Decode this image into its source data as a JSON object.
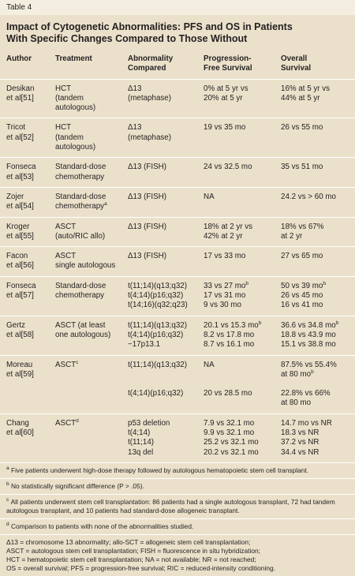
{
  "label": "Table 4",
  "title": [
    "Impact of Cytogenetic Abnormalities: PFS and OS in Patients",
    "With Specific Changes Compared to Those Without"
  ],
  "table": {
    "header": [
      [
        "Author"
      ],
      [
        "Treatment"
      ],
      [
        "Abnormality",
        "Compared"
      ],
      [
        "Progression-",
        "Free Survival"
      ],
      [
        "Overall",
        "Survival"
      ]
    ],
    "rows": [
      [
        [
          [
            "Desikan",
            "et al[51]"
          ]
        ],
        [
          [
            "HCT",
            "(tandem",
            "autologous)"
          ]
        ],
        [
          [
            "Δ13",
            "(metaphase)"
          ]
        ],
        [
          [
            "0% at 5 yr vs",
            "20% at 5 yr"
          ]
        ],
        [
          [
            "16% at 5 yr vs",
            "44% at 5 yr"
          ]
        ]
      ],
      [
        [
          [
            "Tricot",
            "et al[52]"
          ]
        ],
        [
          [
            "HCT",
            "(tandem",
            "autologous)"
          ]
        ],
        [
          [
            "Δ13",
            "(metaphase)"
          ]
        ],
        [
          [
            "19 vs 35 mo"
          ]
        ],
        [
          [
            "26 vs 55 mo"
          ]
        ]
      ],
      [
        [
          [
            "Fonseca",
            "et al[53]"
          ]
        ],
        [
          [
            "Standard-dose",
            "chemotherapy"
          ]
        ],
        [
          [
            "Δ13 (FISH)"
          ]
        ],
        [
          [
            "24 vs 32.5 mo"
          ]
        ],
        [
          [
            "35 vs 51 mo"
          ]
        ]
      ],
      [
        [
          [
            "Zojer",
            "et al[54]"
          ]
        ],
        [
          [
            "Standard-dose",
            {
              "text": "chemotherapy",
              "sup": "a"
            }
          ]
        ],
        [
          [
            "Δ13 (FISH)"
          ]
        ],
        [
          [
            "NA"
          ]
        ],
        [
          [
            "24.2 vs > 60 mo"
          ]
        ]
      ],
      [
        [
          [
            "Kroger",
            "et al[55]"
          ]
        ],
        [
          [
            "ASCT",
            "(auto/RIC allo)"
          ]
        ],
        [
          [
            "Δ13 (FISH)"
          ]
        ],
        [
          [
            "18% at 2 yr vs",
            "42% at 2 yr"
          ]
        ],
        [
          [
            "18% vs 67%",
            "at 2 yr"
          ]
        ]
      ],
      [
        [
          [
            "Facon",
            "et al[56]"
          ]
        ],
        [
          [
            "ASCT",
            "single autologous"
          ]
        ],
        [
          [
            "Δ13 (FISH)"
          ]
        ],
        [
          [
            "17 vs 33 mo"
          ]
        ],
        [
          [
            "27 vs 65 mo"
          ]
        ]
      ],
      [
        [
          [
            "Fonseca",
            "et al[57]"
          ]
        ],
        [
          [
            "Standard-dose",
            "chemotherapy"
          ]
        ],
        [
          [
            "t(11;14)(q13;q32)",
            "t(4;14)(p16;q32)",
            "t(14;16)(q32;q23)"
          ]
        ],
        [
          [
            {
              "text": "33 vs 27 mo",
              "sup": "b"
            },
            "17 vs 31 mo",
            "9 vs 30 mo"
          ]
        ],
        [
          [
            {
              "text": "50 vs 39 mo",
              "sup": "b"
            },
            "26 vs 45 mo",
            "16 vs 41 mo"
          ]
        ]
      ],
      [
        [
          [
            "Gertz",
            "et al[58]"
          ]
        ],
        [
          [
            "ASCT (at least",
            "one autologous)"
          ]
        ],
        [
          [
            "t(11;14)(q13;q32)",
            "t(4;14)(p16;q32)",
            "−17p13.1"
          ]
        ],
        [
          [
            {
              "text": "20.1 vs 15.3 mo",
              "sup": "b"
            },
            "8.2 vs 17.8 mo",
            "8.7 vs 16.1 mo"
          ]
        ],
        [
          [
            {
              "text": "36.6 vs 34.8 mo",
              "sup": "b"
            },
            "18.8 vs 43.9 mo",
            "15.1 vs 38.8 mo"
          ]
        ]
      ],
      [
        [
          [
            "Moreau",
            "et al[59]"
          ]
        ],
        [
          [
            {
              "text": "ASCT",
              "sup": "c"
            }
          ]
        ],
        [
          [
            "t(11;14)(q13;q32)"
          ],
          [
            "t(4;14)(p16;q32)"
          ]
        ],
        [
          [
            "NA"
          ],
          [
            "20 vs 28.5 mo"
          ]
        ],
        [
          [
            "87.5% vs 55.4%",
            {
              "text": "at 80 mo",
              "sup": "b"
            }
          ],
          [
            "22.8% vs 66%",
            "at 80 mo"
          ]
        ]
      ],
      [
        [
          [
            "Chang",
            "et al[60]"
          ]
        ],
        [
          [
            {
              "text": "ASCT",
              "sup": "d"
            }
          ]
        ],
        [
          [
            "p53 deletion",
            "t(4;14)",
            "t(11;14)",
            "13q del"
          ]
        ],
        [
          [
            "7.9 vs 32.1 mo",
            "9.9 vs 32.1 mo",
            "25.2 vs 32.1 mo",
            "20.2 vs 32.1 mo"
          ]
        ],
        [
          [
            "14.7 mo vs NR",
            "18.3 vs NR",
            "37.2 vs NR",
            "34.4 vs NR"
          ]
        ]
      ]
    ]
  },
  "footnotes": [
    {
      "mark": "a",
      "text": "Five patients underwent high-dose therapy followed by autologous hematopoietic stem cell transplant."
    },
    {
      "mark": "b",
      "text": "No statistically significant difference (P > .05)."
    },
    {
      "mark": "c",
      "text": "All patients underwent stem cell transplantation: 86 patients had a single autologous transplant, 72 had tandem autologous transplant, and 10 patients had standard-dose allogeneic transplant."
    },
    {
      "mark": "d",
      "text": "Comparison to patients with none of the abnormalities studied."
    }
  ],
  "abbreviations": [
    "Δ13 = chromosome 13 abnormality; allo-SCT = allogeneic stem cell transplantation;",
    "ASCT = autologous stem cell transplantation; FISH = fluorescence in situ hybridization;",
    "HCT = hematopoietic stem cell transplantation; NA = not available; NR = not reached;",
    "OS = overall survival; PFS = progression-free survival; RIC = reduced-intensity conditioning."
  ]
}
